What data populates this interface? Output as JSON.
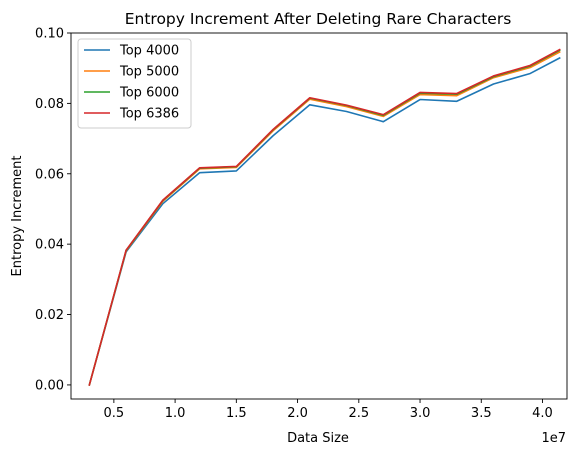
{
  "chart_data": {
    "type": "line",
    "title": "Entropy Increment After Deleting Rare Characters",
    "xlabel": "Data Size",
    "ylabel": "Entropy Increment",
    "x_offset_label": "1e7",
    "xlim": [
      0.15,
      4.2
    ],
    "ylim": [
      -0.004,
      0.1
    ],
    "x_ticks": [
      0.5,
      1.0,
      1.5,
      2.0,
      2.5,
      3.0,
      3.5,
      4.0
    ],
    "x_tick_labels": [
      "0.5",
      "1.0",
      "1.5",
      "2.0",
      "2.5",
      "3.0",
      "3.5",
      "4.0"
    ],
    "y_ticks": [
      0.0,
      0.02,
      0.04,
      0.06,
      0.08,
      0.1
    ],
    "y_tick_labels": [
      "0.00",
      "0.02",
      "0.04",
      "0.06",
      "0.08",
      "0.10"
    ],
    "grid": false,
    "legend_position": "top-left",
    "x": [
      0.3,
      0.6,
      0.9,
      1.2,
      1.5,
      1.8,
      2.1,
      2.4,
      2.7,
      3.0,
      3.3,
      3.6,
      3.9,
      4.14
    ],
    "series": [
      {
        "name": "Top 4000",
        "color": "#1f77b4",
        "values": [
          0.0,
          0.0378,
          0.0515,
          0.0603,
          0.0608,
          0.0708,
          0.0796,
          0.0777,
          0.0748,
          0.0811,
          0.0806,
          0.0855,
          0.0885,
          0.0929
        ]
      },
      {
        "name": "Top 5000",
        "color": "#ff7f0e",
        "values": [
          0.0,
          0.0381,
          0.0522,
          0.0614,
          0.0618,
          0.0722,
          0.0812,
          0.0791,
          0.0763,
          0.0825,
          0.0822,
          0.0873,
          0.0902,
          0.0946
        ]
      },
      {
        "name": "Top 6000",
        "color": "#2ca02c",
        "values": [
          0.0,
          0.0382,
          0.0524,
          0.0616,
          0.062,
          0.0725,
          0.0815,
          0.0794,
          0.0766,
          0.0829,
          0.0826,
          0.0876,
          0.0906,
          0.0951
        ]
      },
      {
        "name": "Top 6386",
        "color": "#d62728",
        "values": [
          0.0,
          0.0383,
          0.0525,
          0.0617,
          0.0621,
          0.0726,
          0.0816,
          0.0795,
          0.0768,
          0.0831,
          0.0828,
          0.0878,
          0.0908,
          0.0953
        ]
      }
    ]
  }
}
